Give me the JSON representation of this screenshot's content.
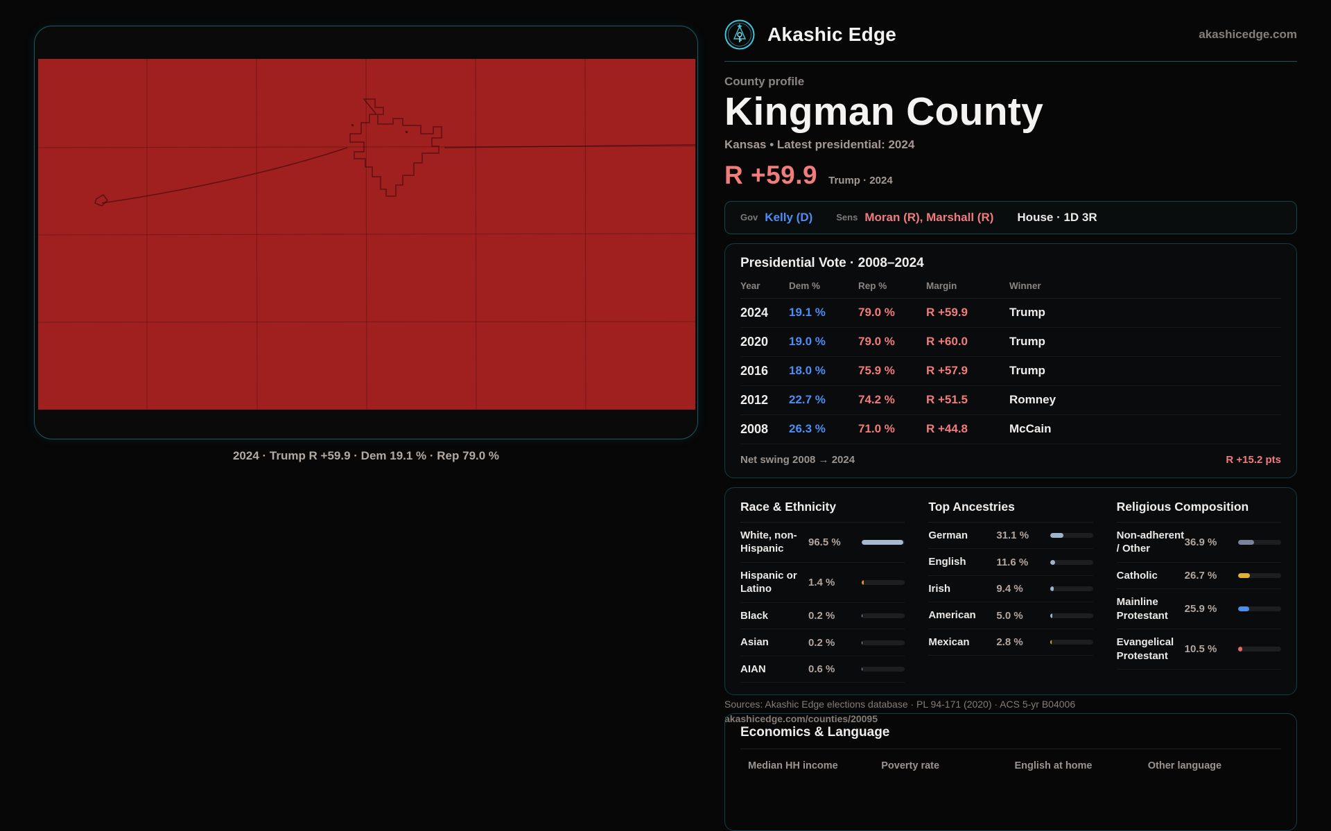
{
  "brand": {
    "name": "Akashic Edge",
    "domain": "akashicedge.com",
    "accent_teal": "#3cc8da"
  },
  "map": {
    "fill": "#a01f1f",
    "caption": "2024 · Trump R +59.9 · Dem 19.1 % · Rep 79.0 %"
  },
  "profile": {
    "eyebrow": "County profile",
    "title": "Kingman County",
    "subtitle": "Kansas • Latest presidential: 2024",
    "margin_value": "R +59.9",
    "margin_context": "Trump · 2024",
    "margin_color": "#f17c7c"
  },
  "officials": {
    "gov_label": "Gov",
    "gov_value": "Kelly (D)",
    "sens_label": "Sens",
    "sens_value": "Moran (R), Marshall (R)",
    "house_value": "House · 1D 3R",
    "dem_color": "#4d8df5",
    "rep_color": "#f17c7c"
  },
  "pres_table": {
    "title": "Presidential Vote · 2008–2024",
    "columns": [
      "Year",
      "Dem %",
      "Rep %",
      "Margin",
      "Winner"
    ],
    "rows": [
      {
        "year": "2024",
        "dem": "19.1 %",
        "rep": "79.0 %",
        "margin": "R +59.9",
        "winner": "Trump"
      },
      {
        "year": "2020",
        "dem": "19.0 %",
        "rep": "79.0 %",
        "margin": "R +60.0",
        "winner": "Trump"
      },
      {
        "year": "2016",
        "dem": "18.0 %",
        "rep": "75.9 %",
        "margin": "R +57.9",
        "winner": "Trump"
      },
      {
        "year": "2012",
        "dem": "22.7 %",
        "rep": "74.2 %",
        "margin": "R +51.5",
        "winner": "Romney"
      },
      {
        "year": "2008",
        "dem": "26.3 %",
        "rep": "71.0 %",
        "margin": "R +44.8",
        "winner": "McCain"
      }
    ],
    "swing_label": "Net swing 2008 → 2024",
    "swing_value": "R +15.2 pts"
  },
  "demographics": {
    "race": {
      "title": "Race & Ethnicity",
      "rows": [
        {
          "label": "White, non-Hispanic",
          "value": "96.5 %",
          "pct": 96.5,
          "color": "#a7b9d1"
        },
        {
          "label": "Hispanic or Latino",
          "value": "1.4 %",
          "pct": 1.4,
          "color": "#de9230"
        },
        {
          "label": "Black",
          "value": "0.2 %",
          "pct": 0.2,
          "color": "#a7b9d1"
        },
        {
          "label": "Asian",
          "value": "0.2 %",
          "pct": 0.2,
          "color": "#a7b9d1"
        },
        {
          "label": "AIAN",
          "value": "0.6 %",
          "pct": 0.6,
          "color": "#a7b9d1"
        }
      ]
    },
    "ancestries": {
      "title": "Top Ancestries",
      "rows": [
        {
          "label": "German",
          "value": "31.1 %",
          "pct": 31.1,
          "color": "#9fb3cc"
        },
        {
          "label": "English",
          "value": "11.6 %",
          "pct": 11.6,
          "color": "#9fb3cc"
        },
        {
          "label": "Irish",
          "value": "9.4 %",
          "pct": 9.4,
          "color": "#9fb3cc"
        },
        {
          "label": "American",
          "value": "5.0 %",
          "pct": 5.0,
          "color": "#9fb3cc"
        },
        {
          "label": "Mexican",
          "value": "2.8 %",
          "pct": 2.8,
          "color": "#e5a520"
        }
      ]
    },
    "religion": {
      "title": "Religious Composition",
      "rows": [
        {
          "label": "Non-adherent / Other",
          "value": "36.9 %",
          "pct": 36.9,
          "color": "#79839a"
        },
        {
          "label": "Catholic",
          "value": "26.7 %",
          "pct": 26.7,
          "color": "#e0b232"
        },
        {
          "label": "Mainline Protestant",
          "value": "25.9 %",
          "pct": 25.9,
          "color": "#4a8fe8"
        },
        {
          "label": "Evangelical Protestant",
          "value": "10.5 %",
          "pct": 10.5,
          "color": "#e46868"
        }
      ]
    }
  },
  "economics": {
    "title": "Economics & Language",
    "columns": [
      "Median HH income",
      "Poverty rate",
      "English at home",
      "Other language"
    ]
  },
  "sources": {
    "line1": "Sources: Akashic Edge elections database · PL 94-171 (2020) · ACS 5-yr B04006",
    "line2": "akashicedge.com/counties/20095"
  }
}
